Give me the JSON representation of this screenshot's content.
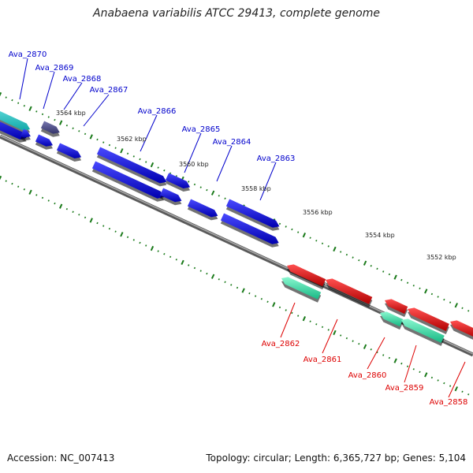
{
  "title": "Anabaena variabilis ATCC 29413, complete genome",
  "footer": {
    "accession": "Accession: NC_007413",
    "summary": "Topology: circular; Length: 6,365,727 bp; Genes: 5,104"
  },
  "colors": {
    "backbone": "#808080",
    "forward_cds": "#0000ee",
    "forward_label": "#0000cc",
    "reverse_cds": "#ee0000",
    "reverse_label": "#dd0000",
    "rna_forward": "#20c8c8",
    "rna_reverse": "#30e0a8",
    "other_feature": "#50508a",
    "tick": "#1a7a1a"
  },
  "kbp_markers": [
    "3564 kbp",
    "3562 kbp",
    "3560 kbp",
    "3558 kbp",
    "3556 kbp",
    "3554 kbp",
    "3552 kbp"
  ],
  "genes": [
    {
      "name": "Ava_2870",
      "strand": "+"
    },
    {
      "name": "Ava_2869",
      "strand": "+"
    },
    {
      "name": "Ava_2868",
      "strand": "+"
    },
    {
      "name": "Ava_2867",
      "strand": "+"
    },
    {
      "name": "Ava_2866",
      "strand": "+"
    },
    {
      "name": "Ava_2865",
      "strand": "+"
    },
    {
      "name": "Ava_2864",
      "strand": "+"
    },
    {
      "name": "Ava_2863",
      "strand": "+"
    },
    {
      "name": "Ava_2862",
      "strand": "-"
    },
    {
      "name": "Ava_2861",
      "strand": "-"
    },
    {
      "name": "Ava_2860",
      "strand": "-"
    },
    {
      "name": "Ava_2859",
      "strand": "-"
    },
    {
      "name": "Ava_2858",
      "strand": "-"
    }
  ]
}
